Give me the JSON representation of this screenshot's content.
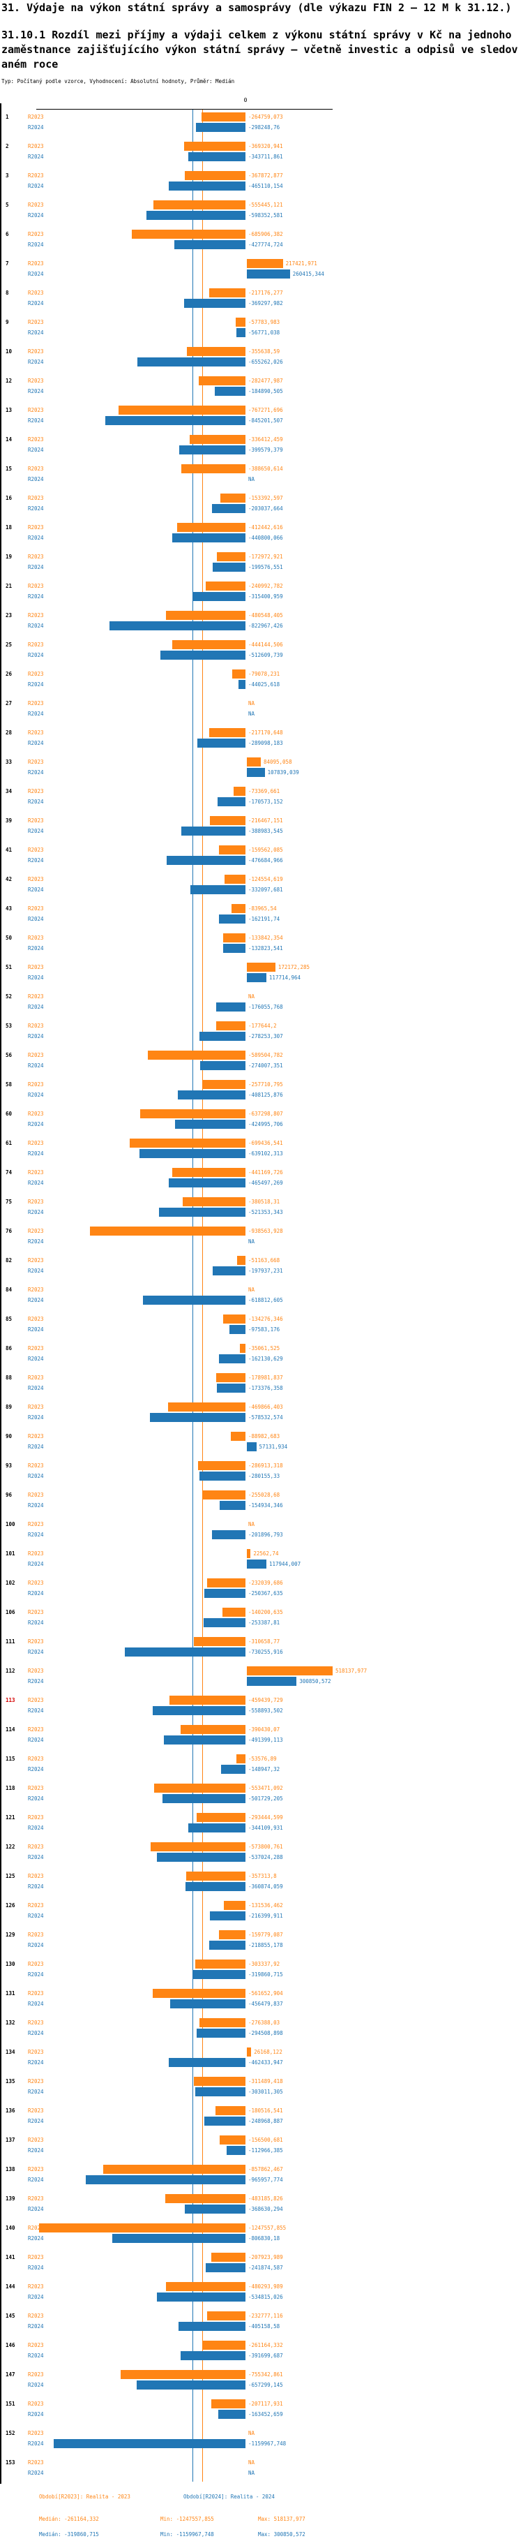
{
  "header": {
    "title": "31. Výdaje na výkon státní správy a samosprávy (dle výkazu FIN 2 – 12 M k 31.12.)",
    "subtitle": "31.10.1 Rozdíl mezi příjmy a výdaji celkem z výkonu státní správy v Kč na jednoho zaměstnance zajišťujícího výkon státní správy – včetně investic a odpisů ve sledovaném roce",
    "meta": "Typ: Počítaný podle vzorce, Vyhodnocení: Absolutní hodnoty, Průměr: Medián"
  },
  "colors": {
    "r2023": "#FF8514",
    "r2024": "#2176B5",
    "highlight_row": "#D40000",
    "axis": "#000000"
  },
  "chart_data": {
    "type": "bar",
    "orientation": "horizontal-diverging",
    "value_format": "decimal-comma",
    "zero_tick_label": "0",
    "xlim": [
      -1265000,
      527000
    ],
    "grid": false,
    "series": [
      {
        "key": "R2023",
        "label": "R2023",
        "color": "#FF8514",
        "median": -261164.332
      },
      {
        "key": "R2024",
        "label": "R2024",
        "color": "#2176B5",
        "median": -319860.715
      }
    ],
    "rows": [
      {
        "id": "1",
        "R2023": "-264759,073",
        "R2024": "-298248,76"
      },
      {
        "id": "2",
        "R2023": "-369320,941",
        "R2024": "-343711,861"
      },
      {
        "id": "3",
        "R2023": "-367872,877",
        "R2024": "-465110,154"
      },
      {
        "id": "5",
        "R2023": "-555445,121",
        "R2024": "-598352,581"
      },
      {
        "id": "6",
        "R2023": "-685906,382",
        "R2024": "-427774,724"
      },
      {
        "id": "7",
        "R2023": "217421,971",
        "R2024": "260415,344"
      },
      {
        "id": "8",
        "R2023": "-217176,277",
        "R2024": "-369297,982"
      },
      {
        "id": "9",
        "R2023": "-57783,983",
        "R2024": "-56771,038"
      },
      {
        "id": "10",
        "R2023": "-355638,59",
        "R2024": "-655262,026"
      },
      {
        "id": "12",
        "R2023": "-282477,987",
        "R2024": "-184890,505"
      },
      {
        "id": "13",
        "R2023": "-767271,696",
        "R2024": "-845201,507"
      },
      {
        "id": "14",
        "R2023": "-336412,459",
        "R2024": "-399579,379"
      },
      {
        "id": "15",
        "R2023": "-388650,614",
        "R2024": "NA"
      },
      {
        "id": "16",
        "R2023": "-153392,597",
        "R2024": "-203037,664"
      },
      {
        "id": "18",
        "R2023": "-412442,616",
        "R2024": "-440800,066"
      },
      {
        "id": "19",
        "R2023": "-172972,921",
        "R2024": "-199576,551"
      },
      {
        "id": "21",
        "R2023": "-240992,782",
        "R2024": "-315400,959"
      },
      {
        "id": "23",
        "R2023": "-480548,405",
        "R2024": "-822967,426"
      },
      {
        "id": "25",
        "R2023": "-444144,506",
        "R2024": "-512609,739"
      },
      {
        "id": "26",
        "R2023": "-79078,231",
        "R2024": "-44025,618"
      },
      {
        "id": "27",
        "R2023": "NA",
        "R2024": "NA"
      },
      {
        "id": "28",
        "R2023": "-217170,648",
        "R2024": "-289098,183"
      },
      {
        "id": "33",
        "R2023": "84095,058",
        "R2024": "107839,039"
      },
      {
        "id": "34",
        "R2023": "-73369,661",
        "R2024": "-170573,152"
      },
      {
        "id": "39",
        "R2023": "-216467,151",
        "R2024": "-388983,545"
      },
      {
        "id": "41",
        "R2023": "-159562,085",
        "R2024": "-476684,966"
      },
      {
        "id": "42",
        "R2023": "-124554,619",
        "R2024": "-332097,681"
      },
      {
        "id": "43",
        "R2023": "-83965,54",
        "R2024": "-162191,74"
      },
      {
        "id": "50",
        "R2023": "-133842,354",
        "R2024": "-132823,541"
      },
      {
        "id": "51",
        "R2023": "172172,285",
        "R2024": "117714,964"
      },
      {
        "id": "52",
        "R2023": "NA",
        "R2024": "-176055,768"
      },
      {
        "id": "53",
        "R2023": "-177644,2",
        "R2024": "-278253,307"
      },
      {
        "id": "56",
        "R2023": "-589504,782",
        "R2024": "-274007,351"
      },
      {
        "id": "58",
        "R2023": "-257710,795",
        "R2024": "-408125,876"
      },
      {
        "id": "60",
        "R2023": "-637298,807",
        "R2024": "-424995,706"
      },
      {
        "id": "61",
        "R2023": "-699436,541",
        "R2024": "-639102,313"
      },
      {
        "id": "74",
        "R2023": "-441169,726",
        "R2024": "-465497,269"
      },
      {
        "id": "75",
        "R2023": "-380518,31",
        "R2024": "-521353,343"
      },
      {
        "id": "76",
        "R2023": "-938563,928",
        "R2024": "NA"
      },
      {
        "id": "82",
        "R2023": "-51163,668",
        "R2024": "-197937,231"
      },
      {
        "id": "84",
        "R2023": "NA",
        "R2024": "-618812,605"
      },
      {
        "id": "85",
        "R2023": "-134276,346",
        "R2024": "-97583,176"
      },
      {
        "id": "86",
        "R2023": "-35061,525",
        "R2024": "-162130,629"
      },
      {
        "id": "88",
        "R2023": "-178981,837",
        "R2024": "-173376,358"
      },
      {
        "id": "89",
        "R2023": "-469866,403",
        "R2024": "-578532,574"
      },
      {
        "id": "90",
        "R2023": "-88982,683",
        "R2024": "57131,934"
      },
      {
        "id": "93",
        "R2023": "-286913,318",
        "R2024": "-280155,33"
      },
      {
        "id": "96",
        "R2023": "-255028,68",
        "R2024": "-154934,346"
      },
      {
        "id": "100",
        "R2023": "NA",
        "R2024": "-201896,793"
      },
      {
        "id": "101",
        "R2023": "22562,74",
        "R2024": "117944,007"
      },
      {
        "id": "102",
        "R2023": "-232039,686",
        "R2024": "-250367,635"
      },
      {
        "id": "106",
        "R2023": "-140200,635",
        "R2024": "-253387,81"
      },
      {
        "id": "111",
        "R2023": "-310658,77",
        "R2024": "-730255,916"
      },
      {
        "id": "112",
        "R2023": "518137,977",
        "R2024": "300850,572"
      },
      {
        "id": "113",
        "R2023": "-459439,729",
        "R2024": "-558893,502",
        "highlight": true
      },
      {
        "id": "114",
        "R2023": "-390430,07",
        "R2024": "-491399,113"
      },
      {
        "id": "115",
        "R2023": "-53576,89",
        "R2024": "-148947,32"
      },
      {
        "id": "118",
        "R2023": "-553471,092",
        "R2024": "-501729,205"
      },
      {
        "id": "121",
        "R2023": "-293444,599",
        "R2024": "-344109,931"
      },
      {
        "id": "122",
        "R2023": "-573800,761",
        "R2024": "-537024,288"
      },
      {
        "id": "125",
        "R2023": "-357313,8",
        "R2024": "-360874,059"
      },
      {
        "id": "126",
        "R2023": "-131536,462",
        "R2024": "-216399,911"
      },
      {
        "id": "129",
        "R2023": "-159779,087",
        "R2024": "-218855,178"
      },
      {
        "id": "130",
        "R2023": "-303337,92",
        "R2024": "-319860,715"
      },
      {
        "id": "131",
        "R2023": "-561652,904",
        "R2024": "-456479,837"
      },
      {
        "id": "132",
        "R2023": "-276388,03",
        "R2024": "-294508,898"
      },
      {
        "id": "134",
        "R2023": "26168,122",
        "R2024": "-462433,947"
      },
      {
        "id": "135",
        "R2023": "-311489,418",
        "R2024": "-303011,305"
      },
      {
        "id": "136",
        "R2023": "-180516,541",
        "R2024": "-248968,887"
      },
      {
        "id": "137",
        "R2023": "-156500,681",
        "R2024": "-112966,385"
      },
      {
        "id": "138",
        "R2023": "-857862,467",
        "R2024": "-965957,774"
      },
      {
        "id": "139",
        "R2023": "-483185,826",
        "R2024": "-368630,294"
      },
      {
        "id": "140",
        "R2023": "-1247557,855",
        "R2024": "-806830,18"
      },
      {
        "id": "141",
        "R2023": "-207923,989",
        "R2024": "-241874,587"
      },
      {
        "id": "144",
        "R2023": "-480293,989",
        "R2024": "-534815,026"
      },
      {
        "id": "145",
        "R2023": "-232777,116",
        "R2024": "-405158,58"
      },
      {
        "id": "146",
        "R2023": "-261164,332",
        "R2024": "-391699,687"
      },
      {
        "id": "147",
        "R2023": "-755342,861",
        "R2024": "-657299,145"
      },
      {
        "id": "151",
        "R2023": "-207117,931",
        "R2024": "-163452,659"
      },
      {
        "id": "152",
        "R2023": "NA",
        "R2024": "-1159967,748"
      },
      {
        "id": "153",
        "R2023": "NA",
        "R2024": "NA"
      }
    ]
  },
  "footer": {
    "legend_r2023": "Období[R2023]: Realita - 2023",
    "legend_r2024": "Období[R2024]: Realita - 2024",
    "stats_r2023": {
      "median": "Medián: -261164,332",
      "min": "Min: -1247557,855",
      "max": "Max: 518137,977"
    },
    "stats_r2024": {
      "median": "Medián: -319860,715",
      "min": "Min: -1159967,748",
      "max": "Max: 300850,572"
    }
  }
}
